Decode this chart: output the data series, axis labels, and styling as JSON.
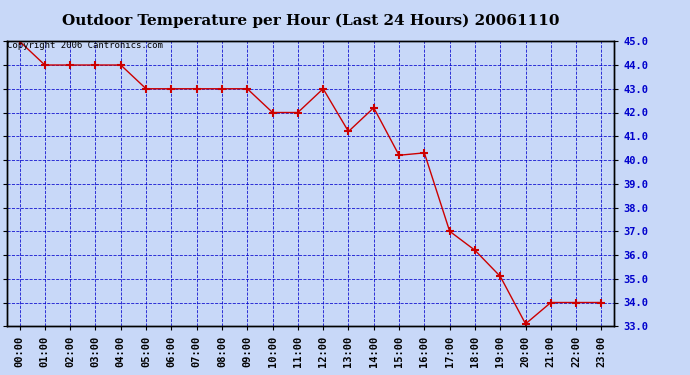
{
  "title": "Outdoor Temperature per Hour (Last 24 Hours) 20061110",
  "copyright_text": "Copyright 2006 Cantronics.com",
  "hours": [
    "00:00",
    "01:00",
    "02:00",
    "03:00",
    "04:00",
    "05:00",
    "06:00",
    "07:00",
    "08:00",
    "09:00",
    "10:00",
    "11:00",
    "12:00",
    "13:00",
    "14:00",
    "15:00",
    "16:00",
    "17:00",
    "18:00",
    "19:00",
    "20:00",
    "21:00",
    "22:00",
    "23:00"
  ],
  "temperatures": [
    45.0,
    44.0,
    44.0,
    44.0,
    44.0,
    43.0,
    43.0,
    43.0,
    43.0,
    43.0,
    42.0,
    42.0,
    43.0,
    41.2,
    42.2,
    40.2,
    40.3,
    37.0,
    36.2,
    35.1,
    33.1,
    34.0,
    34.0,
    34.0
  ],
  "line_color": "#cc0000",
  "marker": "+",
  "marker_color": "#cc0000",
  "bg_color": "#c8d8f8",
  "grid_color": "#0000cc",
  "border_color": "#000000",
  "title_color": "#000000",
  "ylim_min": 33.0,
  "ylim_max": 45.0,
  "ytick_step": 1.0,
  "title_fontsize": 11,
  "tick_fontsize": 7.5,
  "copyright_fontsize": 6.5,
  "fig_width": 6.9,
  "fig_height": 3.75,
  "dpi": 100
}
